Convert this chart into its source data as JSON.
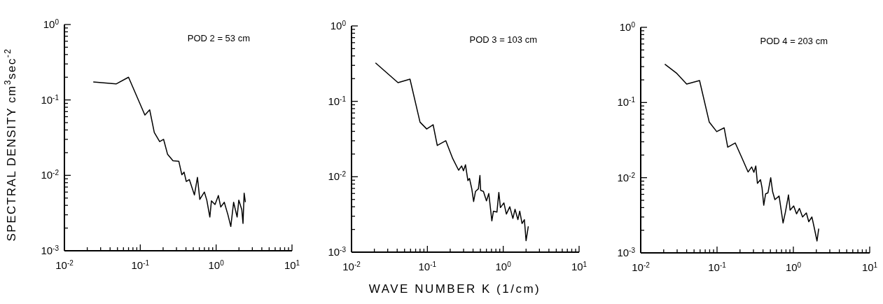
{
  "chart_data": [
    {
      "type": "line",
      "ylabel": "SPECTRAL DENSITY cm$^{3}$sec$^{-2}$",
      "annotations": [
        "POD 2 = 53 cm"
      ],
      "log": "xy",
      "xlim": [
        0.01,
        10
      ],
      "ylim": [
        0.001,
        1
      ],
      "xticks": [
        {
          "value": 0.01,
          "label": "10$^{-2}$"
        },
        {
          "value": 0.02,
          "label": null
        },
        {
          "value": 0.03,
          "label": null
        },
        {
          "value": 0.04,
          "label": null
        },
        {
          "value": 0.05,
          "label": null
        },
        {
          "value": 0.06,
          "label": null
        },
        {
          "value": 0.07,
          "label": null
        },
        {
          "value": 0.08,
          "label": null
        },
        {
          "value": 0.09,
          "label": null
        },
        {
          "value": 0.1,
          "label": "10$^{-1}$"
        },
        {
          "value": 0.2,
          "label": null
        },
        {
          "value": 0.3,
          "label": null
        },
        {
          "value": 0.4,
          "label": null
        },
        {
          "value": 0.5,
          "label": null
        },
        {
          "value": 0.6,
          "label": null
        },
        {
          "value": 0.7,
          "label": null
        },
        {
          "value": 0.8,
          "label": null
        },
        {
          "value": 0.9,
          "label": null
        },
        {
          "value": 1,
          "label": "10$^{0}$"
        },
        {
          "value": 2,
          "label": null
        },
        {
          "value": 3,
          "label": null
        },
        {
          "value": 4,
          "label": null
        },
        {
          "value": 5,
          "label": null
        },
        {
          "value": 6,
          "label": null
        },
        {
          "value": 7,
          "label": null
        },
        {
          "value": 8,
          "label": null
        },
        {
          "value": 9,
          "label": null
        },
        {
          "value": 10,
          "label": "10$^{1}$"
        }
      ],
      "yticks": [
        {
          "value": 0.001,
          "label": "10$^{-3}$"
        },
        {
          "value": 0.002,
          "label": null
        },
        {
          "value": 0.003,
          "label": null
        },
        {
          "value": 0.004,
          "label": null
        },
        {
          "value": 0.005,
          "label": null
        },
        {
          "value": 0.006,
          "label": null
        },
        {
          "value": 0.007,
          "label": null
        },
        {
          "value": 0.008,
          "label": null
        },
        {
          "value": 0.009,
          "label": null
        },
        {
          "value": 0.01,
          "label": "10$^{-2}$"
        },
        {
          "value": 0.02,
          "label": null
        },
        {
          "value": 0.03,
          "label": null
        },
        {
          "value": 0.04,
          "label": null
        },
        {
          "value": 0.05,
          "label": null
        },
        {
          "value": 0.06,
          "label": null
        },
        {
          "value": 0.07,
          "label": null
        },
        {
          "value": 0.08,
          "label": null
        },
        {
          "value": 0.09,
          "label": null
        },
        {
          "value": 0.1,
          "label": "10$^{-1}$"
        },
        {
          "value": 0.2,
          "label": null
        },
        {
          "value": 0.3,
          "label": null
        },
        {
          "value": 0.4,
          "label": null
        },
        {
          "value": 0.5,
          "label": null
        },
        {
          "value": 0.6,
          "label": null
        },
        {
          "value": 0.7,
          "label": null
        },
        {
          "value": 0.8,
          "label": null
        },
        {
          "value": 0.9,
          "label": null
        },
        {
          "value": 1,
          "label": "10$^{0}$"
        }
      ],
      "series": [
        {
          "color": "#000000",
          "x": [
            0.024,
            0.048,
            0.07,
            0.115,
            0.133,
            0.153,
            0.18,
            0.203,
            0.229,
            0.27,
            0.322,
            0.353,
            0.378,
            0.404,
            0.443,
            0.517,
            0.567,
            0.609,
            0.7,
            0.753,
            0.826,
            0.867,
            0.966,
            1.07,
            1.15,
            1.28,
            1.43,
            1.56,
            1.7,
            1.89,
            1.99,
            2.18,
            2.26,
            2.34,
            2.43
          ],
          "values": [
            0.173,
            0.163,
            0.2,
            0.063,
            0.074,
            0.037,
            0.028,
            0.03,
            0.019,
            0.0156,
            0.0154,
            0.0102,
            0.011,
            0.0083,
            0.0088,
            0.0055,
            0.0094,
            0.0048,
            0.006,
            0.0047,
            0.0028,
            0.0046,
            0.0041,
            0.0054,
            0.0038,
            0.0044,
            0.003,
            0.0021,
            0.0044,
            0.0028,
            0.0047,
            0.0035,
            0.0023,
            0.0058,
            0.0044
          ]
        }
      ]
    },
    {
      "type": "line",
      "xlabel": "WAVE NUMBER K (1/cm)",
      "annotations": [
        "POD 3 = 103 cm"
      ],
      "log": "xy",
      "xlim": [
        0.01,
        10
      ],
      "ylim": [
        0.001,
        1
      ],
      "xticks": [
        {
          "value": 0.01,
          "label": "10$^{-2}$"
        },
        {
          "value": 0.02,
          "label": null
        },
        {
          "value": 0.03,
          "label": null
        },
        {
          "value": 0.04,
          "label": null
        },
        {
          "value": 0.05,
          "label": null
        },
        {
          "value": 0.06,
          "label": null
        },
        {
          "value": 0.07,
          "label": null
        },
        {
          "value": 0.08,
          "label": null
        },
        {
          "value": 0.09,
          "label": null
        },
        {
          "value": 0.1,
          "label": "10$^{-1}$"
        },
        {
          "value": 0.2,
          "label": null
        },
        {
          "value": 0.3,
          "label": null
        },
        {
          "value": 0.4,
          "label": null
        },
        {
          "value": 0.5,
          "label": null
        },
        {
          "value": 0.6,
          "label": null
        },
        {
          "value": 0.7,
          "label": null
        },
        {
          "value": 0.8,
          "label": null
        },
        {
          "value": 0.9,
          "label": null
        },
        {
          "value": 1,
          "label": "10$^{0}$"
        },
        {
          "value": 2,
          "label": null
        },
        {
          "value": 3,
          "label": null
        },
        {
          "value": 4,
          "label": null
        },
        {
          "value": 5,
          "label": null
        },
        {
          "value": 6,
          "label": null
        },
        {
          "value": 7,
          "label": null
        },
        {
          "value": 8,
          "label": null
        },
        {
          "value": 9,
          "label": null
        },
        {
          "value": 10,
          "label": "10$^{1}$"
        }
      ],
      "yticks": [
        {
          "value": 0.001,
          "label": "10$^{-3}$"
        },
        {
          "value": 0.002,
          "label": null
        },
        {
          "value": 0.003,
          "label": null
        },
        {
          "value": 0.004,
          "label": null
        },
        {
          "value": 0.005,
          "label": null
        },
        {
          "value": 0.006,
          "label": null
        },
        {
          "value": 0.007,
          "label": null
        },
        {
          "value": 0.008,
          "label": null
        },
        {
          "value": 0.009,
          "label": null
        },
        {
          "value": 0.01,
          "label": "10$^{-2}$"
        },
        {
          "value": 0.02,
          "label": null
        },
        {
          "value": 0.03,
          "label": null
        },
        {
          "value": 0.04,
          "label": null
        },
        {
          "value": 0.05,
          "label": null
        },
        {
          "value": 0.06,
          "label": null
        },
        {
          "value": 0.07,
          "label": null
        },
        {
          "value": 0.08,
          "label": null
        },
        {
          "value": 0.09,
          "label": null
        },
        {
          "value": 0.1,
          "label": "10$^{-1}$"
        },
        {
          "value": 0.2,
          "label": null
        },
        {
          "value": 0.3,
          "label": null
        },
        {
          "value": 0.4,
          "label": null
        },
        {
          "value": 0.5,
          "label": null
        },
        {
          "value": 0.6,
          "label": null
        },
        {
          "value": 0.7,
          "label": null
        },
        {
          "value": 0.8,
          "label": null
        },
        {
          "value": 0.9,
          "label": null
        },
        {
          "value": 1,
          "label": "10$^{0}$"
        }
      ],
      "series": [
        {
          "color": "#000000",
          "x": [
            0.0207,
            0.041,
            0.059,
            0.08,
            0.098,
            0.119,
            0.135,
            0.175,
            0.216,
            0.258,
            0.283,
            0.299,
            0.318,
            0.342,
            0.359,
            0.385,
            0.407,
            0.431,
            0.47,
            0.493,
            0.504,
            0.548,
            0.601,
            0.645,
            0.708,
            0.743,
            0.826,
            0.875,
            0.918,
            1.02,
            1.1,
            1.22,
            1.34,
            1.43,
            1.56,
            1.65,
            1.77,
            1.9,
            2.0,
            2.14
          ],
          "values": [
            0.324,
            0.177,
            0.197,
            0.053,
            0.043,
            0.049,
            0.026,
            0.03,
            0.0174,
            0.0122,
            0.0139,
            0.012,
            0.0144,
            0.0089,
            0.0095,
            0.0069,
            0.0047,
            0.0064,
            0.0069,
            0.0104,
            0.0066,
            0.0064,
            0.0048,
            0.006,
            0.0026,
            0.0035,
            0.0034,
            0.0062,
            0.0039,
            0.0045,
            0.0032,
            0.004,
            0.0028,
            0.0037,
            0.0027,
            0.0035,
            0.0024,
            0.0027,
            0.00142,
            0.0022
          ]
        }
      ]
    },
    {
      "type": "line",
      "annotations": [
        "POD 4 = 203 cm"
      ],
      "log": "xy",
      "xlim": [
        0.01,
        10
      ],
      "ylim": [
        0.001,
        1
      ],
      "xticks": [
        {
          "value": 0.01,
          "label": "10$^{-2}$"
        },
        {
          "value": 0.02,
          "label": null
        },
        {
          "value": 0.03,
          "label": null
        },
        {
          "value": 0.04,
          "label": null
        },
        {
          "value": 0.05,
          "label": null
        },
        {
          "value": 0.06,
          "label": null
        },
        {
          "value": 0.07,
          "label": null
        },
        {
          "value": 0.08,
          "label": null
        },
        {
          "value": 0.09,
          "label": null
        },
        {
          "value": 0.1,
          "label": "10$^{-1}$"
        },
        {
          "value": 0.2,
          "label": null
        },
        {
          "value": 0.3,
          "label": null
        },
        {
          "value": 0.4,
          "label": null
        },
        {
          "value": 0.5,
          "label": null
        },
        {
          "value": 0.6,
          "label": null
        },
        {
          "value": 0.7,
          "label": null
        },
        {
          "value": 0.8,
          "label": null
        },
        {
          "value": 0.9,
          "label": null
        },
        {
          "value": 1,
          "label": "10$^{0}$"
        },
        {
          "value": 2,
          "label": null
        },
        {
          "value": 3,
          "label": null
        },
        {
          "value": 4,
          "label": null
        },
        {
          "value": 5,
          "label": null
        },
        {
          "value": 6,
          "label": null
        },
        {
          "value": 7,
          "label": null
        },
        {
          "value": 8,
          "label": null
        },
        {
          "value": 9,
          "label": null
        },
        {
          "value": 10,
          "label": "10$^{1}$"
        }
      ],
      "yticks": [
        {
          "value": 0.001,
          "label": "10$^{-3}$"
        },
        {
          "value": 0.002,
          "label": null
        },
        {
          "value": 0.003,
          "label": null
        },
        {
          "value": 0.004,
          "label": null
        },
        {
          "value": 0.005,
          "label": null
        },
        {
          "value": 0.006,
          "label": null
        },
        {
          "value": 0.007,
          "label": null
        },
        {
          "value": 0.008,
          "label": null
        },
        {
          "value": 0.009,
          "label": null
        },
        {
          "value": 0.01,
          "label": "10$^{-2}$"
        },
        {
          "value": 0.02,
          "label": null
        },
        {
          "value": 0.03,
          "label": null
        },
        {
          "value": 0.04,
          "label": null
        },
        {
          "value": 0.05,
          "label": null
        },
        {
          "value": 0.06,
          "label": null
        },
        {
          "value": 0.07,
          "label": null
        },
        {
          "value": 0.08,
          "label": null
        },
        {
          "value": 0.09,
          "label": null
        },
        {
          "value": 0.1,
          "label": "10$^{-1}$"
        },
        {
          "value": 0.2,
          "label": null
        },
        {
          "value": 0.3,
          "label": null
        },
        {
          "value": 0.4,
          "label": null
        },
        {
          "value": 0.5,
          "label": null
        },
        {
          "value": 0.6,
          "label": null
        },
        {
          "value": 0.7,
          "label": null
        },
        {
          "value": 0.8,
          "label": null
        },
        {
          "value": 0.9,
          "label": null
        },
        {
          "value": 1,
          "label": "10$^{0}$"
        }
      ],
      "series": [
        {
          "color": "#000000",
          "x": [
            0.0207,
            0.0298,
            0.04,
            0.059,
            0.079,
            0.099,
            0.124,
            0.138,
            0.173,
            0.214,
            0.255,
            0.284,
            0.304,
            0.322,
            0.338,
            0.371,
            0.389,
            0.409,
            0.433,
            0.465,
            0.505,
            0.535,
            0.573,
            0.65,
            0.733,
            0.787,
            0.863,
            0.906,
            1.01,
            1.1,
            1.2,
            1.32,
            1.48,
            1.59,
            1.75,
            1.87,
            2.04,
            2.15
          ],
          "values": [
            0.323,
            0.243,
            0.176,
            0.196,
            0.055,
            0.041,
            0.046,
            0.0255,
            0.029,
            0.0179,
            0.0119,
            0.0139,
            0.0118,
            0.0143,
            0.0084,
            0.0094,
            0.0073,
            0.0043,
            0.0061,
            0.0063,
            0.01,
            0.0065,
            0.0051,
            0.0057,
            0.0025,
            0.0035,
            0.0059,
            0.0037,
            0.0042,
            0.0033,
            0.0039,
            0.003,
            0.0034,
            0.0026,
            0.003,
            0.0022,
            0.00144,
            0.0021
          ]
        }
      ]
    }
  ]
}
